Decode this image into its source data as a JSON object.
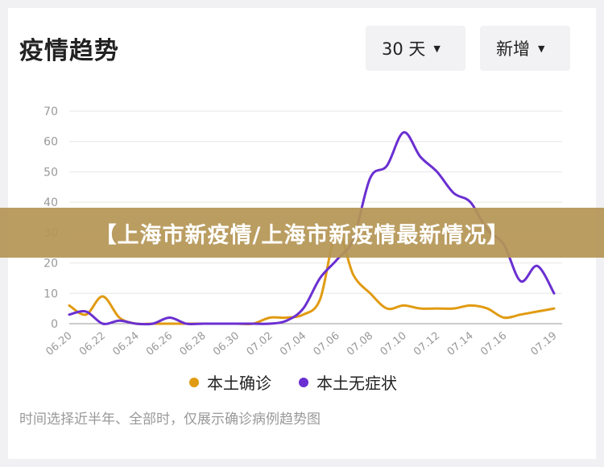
{
  "header": {
    "title": "疫情趋势",
    "range_select": "30 天",
    "metric_select": "新增"
  },
  "banner": {
    "text": "【上海市新疫情/上海市新疫情最新情况】"
  },
  "footer": {
    "note": "时间选择近半年、全部时，仅展示确诊病例趋势图"
  },
  "colors": {
    "local_confirmed": "#e19b12",
    "local_asymptomatic": "#6a2fd1",
    "grid": "#e6e6e6"
  },
  "chart_data": {
    "type": "line",
    "title": "",
    "xlabel": "",
    "ylabel": "",
    "x": [
      "06.20",
      "06.21",
      "06.22",
      "06.23",
      "06.24",
      "06.25",
      "06.26",
      "06.27",
      "06.28",
      "06.29",
      "06.30",
      "07.01",
      "07.02",
      "07.03",
      "07.04",
      "07.05",
      "07.06",
      "07.07",
      "07.08",
      "07.09",
      "07.10",
      "07.11",
      "07.12",
      "07.13",
      "07.14",
      "07.15",
      "07.16",
      "07.17",
      "07.18",
      "07.19"
    ],
    "x_tick_labels": [
      "06.20",
      "06.22",
      "06.24",
      "06.26",
      "06.28",
      "06.30",
      "07.02",
      "07.04",
      "07.06",
      "07.08",
      "07.10",
      "07.12",
      "07.14",
      "07.16",
      "07.19"
    ],
    "y_ticks": [
      0,
      10,
      20,
      30,
      40,
      50,
      60,
      70
    ],
    "ylim": [
      0,
      70
    ],
    "grid": true,
    "legend_position": "bottom",
    "series": [
      {
        "name": "本土确诊",
        "color": "#e19b12",
        "values": [
          6,
          3,
          9,
          2,
          0,
          0,
          0,
          0,
          0,
          0,
          0,
          0,
          2,
          2,
          3,
          8,
          30,
          16,
          10,
          5,
          6,
          5,
          5,
          5,
          6,
          5,
          2,
          3,
          4,
          5
        ]
      },
      {
        "name": "本土无症状",
        "color": "#6a2fd1",
        "values": [
          3,
          4,
          0,
          1,
          0,
          0,
          2,
          0,
          0,
          0,
          0,
          0,
          0,
          1,
          5,
          15,
          21,
          28,
          48,
          52,
          63,
          55,
          50,
          43,
          40,
          31,
          26,
          14,
          19,
          10
        ]
      }
    ]
  }
}
